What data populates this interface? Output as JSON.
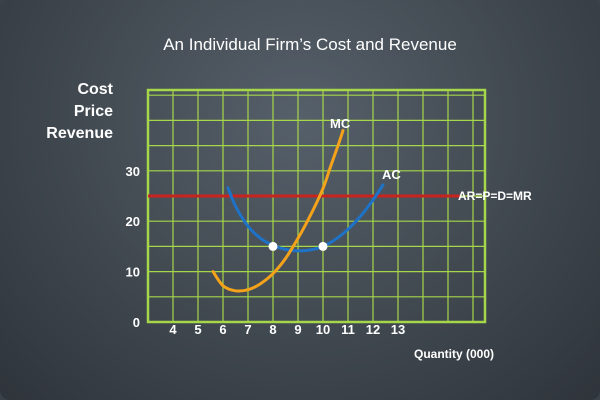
{
  "chart_data": {
    "type": "line",
    "title": "An Individual Firm’s Cost and Revenue",
    "ylabel": [
      "Cost",
      "Price",
      "Revenue"
    ],
    "xlabel": "Quantity (000)",
    "xlim": [
      3,
      16
    ],
    "ylim": [
      0,
      46
    ],
    "grid": true,
    "x_ticks": [
      4,
      5,
      6,
      7,
      8,
      9,
      10,
      11,
      12,
      13
    ],
    "y_ticks": [
      0,
      10,
      20,
      30
    ],
    "colors": {
      "grid": "#a6d64a",
      "mc": "#f3a21a",
      "ac": "#1e72c8",
      "revenue_line": "#c8231f",
      "points": "#ffffff"
    },
    "series": [
      {
        "name": "MC",
        "x": [
          5.6,
          6.0,
          6.5,
          7.0,
          7.5,
          8.0,
          8.5,
          9.0,
          9.5,
          10.0,
          10.3,
          10.6,
          10.8
        ],
        "y": [
          10,
          7.2,
          6.2,
          6.4,
          7.6,
          9.6,
          12.6,
          16.6,
          21.2,
          26.5,
          30.8,
          35.0,
          38.0
        ]
      },
      {
        "name": "AC",
        "x": [
          6.2,
          6.5,
          7.0,
          7.5,
          8.0,
          8.5,
          9.0,
          9.5,
          10.0,
          10.5,
          11.0,
          11.5,
          12.0,
          12.4
        ],
        "y": [
          26.6,
          23.0,
          19.0,
          16.6,
          15.2,
          14.4,
          14.1,
          14.3,
          15.0,
          16.4,
          18.4,
          21.0,
          24.2,
          27.2
        ]
      },
      {
        "name": "AR=P=D=MR",
        "x": [
          3,
          15.5
        ],
        "y": [
          25,
          25
        ]
      }
    ],
    "points": [
      {
        "x": 8,
        "y": 15
      },
      {
        "x": 10,
        "y": 15
      }
    ]
  }
}
